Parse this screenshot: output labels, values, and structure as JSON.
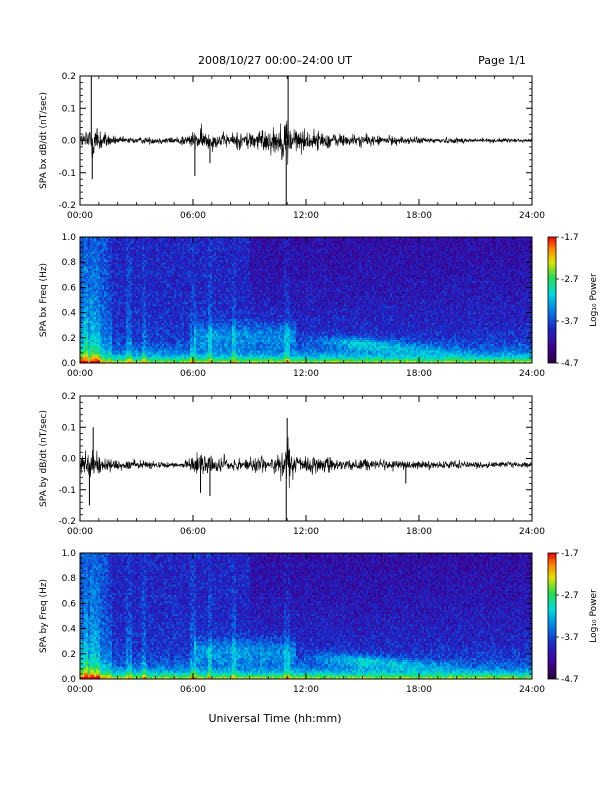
{
  "header": {
    "title": "2008/10/27   00:00–24:00 UT",
    "page": "Page 1/1"
  },
  "footer": {
    "xlabel": "Universal Time (hh:mm)"
  },
  "colorbar": {
    "label": "Log₁₀ Power",
    "ticks": [
      "-1.7",
      "-2.7",
      "-3.7",
      "-4.7"
    ]
  },
  "chart_data": [
    {
      "type": "line",
      "ylabel": "SPA bx dB/dt (nT/sec)",
      "xlim": [
        0,
        24
      ],
      "ylim": [
        -0.2,
        0.2
      ],
      "x_ticks": [
        "00:00",
        "06:00",
        "12:00",
        "18:00",
        "24:00"
      ],
      "y_ticks": [
        "0.2",
        "0.1",
        "0.0",
        "-0.1",
        "-0.2"
      ],
      "baseline": 0.0,
      "envelope": [
        {
          "t": 0.0,
          "a": 0.04
        },
        {
          "t": 0.3,
          "a": 0.06
        },
        {
          "t": 0.6,
          "a": 0.13
        },
        {
          "t": 0.9,
          "a": 0.1
        },
        {
          "t": 1.3,
          "a": 0.05
        },
        {
          "t": 2.0,
          "a": 0.02
        },
        {
          "t": 5.0,
          "a": 0.02
        },
        {
          "t": 6.0,
          "a": 0.05
        },
        {
          "t": 6.5,
          "a": 0.07
        },
        {
          "t": 7.5,
          "a": 0.04
        },
        {
          "t": 9.0,
          "a": 0.06
        },
        {
          "t": 10.5,
          "a": 0.08
        },
        {
          "t": 11.0,
          "a": 0.15
        },
        {
          "t": 11.5,
          "a": 0.07
        },
        {
          "t": 14.0,
          "a": 0.04
        },
        {
          "t": 18.0,
          "a": 0.02
        },
        {
          "t": 24.0,
          "a": 0.01
        }
      ],
      "spikes": [
        {
          "t": 0.6,
          "v": 0.2
        },
        {
          "t": 0.65,
          "v": -0.12
        },
        {
          "t": 6.1,
          "v": -0.11
        },
        {
          "t": 6.9,
          "v": -0.07
        },
        {
          "t": 10.95,
          "v": -0.2
        },
        {
          "t": 11.05,
          "v": 0.2
        }
      ]
    },
    {
      "type": "heatmap",
      "ylabel": "SPA bx Freq (Hz)",
      "xlim": [
        0,
        24
      ],
      "ylim": [
        0,
        1.0
      ],
      "x_ticks": [
        "00:00",
        "06:00",
        "12:00",
        "18:00",
        "24:00"
      ],
      "y_ticks": [
        "1.0",
        "0.8",
        "0.6",
        "0.4",
        "0.2",
        "0.0"
      ],
      "zlim": [
        -4.7,
        -1.7
      ],
      "zlabel": "Log₁₀ Power"
    },
    {
      "type": "line",
      "ylabel": "SPA by dB/dt (nT/sec)",
      "xlim": [
        0,
        24
      ],
      "ylim": [
        -0.2,
        0.2
      ],
      "x_ticks": [
        "00:00",
        "06:00",
        "12:00",
        "18:00",
        "24:00"
      ],
      "y_ticks": [
        "0.2",
        "0.1",
        "0.0",
        "-0.1",
        "-0.2"
      ],
      "baseline": -0.02,
      "envelope": [
        {
          "t": 0.0,
          "a": 0.05
        },
        {
          "t": 0.3,
          "a": 0.08
        },
        {
          "t": 0.6,
          "a": 0.1
        },
        {
          "t": 1.0,
          "a": 0.07
        },
        {
          "t": 1.5,
          "a": 0.04
        },
        {
          "t": 3.0,
          "a": 0.025
        },
        {
          "t": 5.5,
          "a": 0.02
        },
        {
          "t": 6.0,
          "a": 0.05
        },
        {
          "t": 6.8,
          "a": 0.07
        },
        {
          "t": 8.0,
          "a": 0.04
        },
        {
          "t": 10.5,
          "a": 0.06
        },
        {
          "t": 11.0,
          "a": 0.13
        },
        {
          "t": 11.5,
          "a": 0.06
        },
        {
          "t": 14.0,
          "a": 0.04
        },
        {
          "t": 18.0,
          "a": 0.025
        },
        {
          "t": 24.0,
          "a": 0.015
        }
      ],
      "spikes": [
        {
          "t": 0.5,
          "v": -0.15
        },
        {
          "t": 0.7,
          "v": 0.1
        },
        {
          "t": 6.4,
          "v": -0.11
        },
        {
          "t": 6.9,
          "v": -0.12
        },
        {
          "t": 10.95,
          "v": -0.2
        },
        {
          "t": 11.0,
          "v": 0.13
        },
        {
          "t": 17.3,
          "v": -0.08
        }
      ]
    },
    {
      "type": "heatmap",
      "ylabel": "SPA by Freq (Hz)",
      "xlim": [
        0,
        24
      ],
      "ylim": [
        0,
        1.0
      ],
      "x_ticks": [
        "00:00",
        "06:00",
        "12:00",
        "18:00",
        "24:00"
      ],
      "y_ticks": [
        "1.0",
        "0.8",
        "0.6",
        "0.4",
        "0.2",
        "0.0"
      ],
      "zlim": [
        -4.7,
        -1.7
      ],
      "zlabel": "Log₁₀ Power"
    }
  ]
}
